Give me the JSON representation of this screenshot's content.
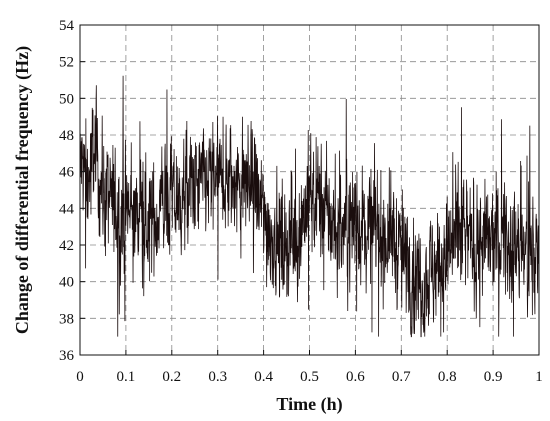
{
  "chart_data": {
    "type": "line",
    "title": "",
    "xlabel": "Time (h)",
    "ylabel": "Change of differential frequency (Hz)",
    "xlim": [
      0,
      1
    ],
    "ylim": [
      36,
      54
    ],
    "xticks": [
      0,
      0.1,
      0.2,
      0.3,
      0.4,
      0.5,
      0.6,
      0.7,
      0.8,
      0.9,
      1
    ],
    "xtick_labels": [
      "0",
      "0.1",
      "0.2",
      "0.3",
      "0.4",
      "0.5",
      "0.6",
      "0.7",
      "0.8",
      "0.9",
      "1"
    ],
    "yticks": [
      36,
      38,
      40,
      42,
      44,
      46,
      48,
      50,
      52,
      54
    ],
    "ytick_labels": [
      "36",
      "38",
      "40",
      "42",
      "44",
      "46",
      "48",
      "50",
      "52",
      "54"
    ],
    "grid": true,
    "grid_style": "dashed",
    "legend": "none",
    "line_color": "#1a0d0d",
    "series": [
      {
        "x": [
          0,
          0.01,
          0.02,
          0.03,
          0.04,
          0.05,
          0.06,
          0.08,
          0.1,
          0.12,
          0.14,
          0.16,
          0.18,
          0.2,
          0.22,
          0.24,
          0.26,
          0.28,
          0.3,
          0.32,
          0.34,
          0.36,
          0.38,
          0.4,
          0.42,
          0.44,
          0.46,
          0.48,
          0.5,
          0.52,
          0.54,
          0.56,
          0.58,
          0.6,
          0.62,
          0.64,
          0.66,
          0.68,
          0.7,
          0.72,
          0.74,
          0.76,
          0.78,
          0.8,
          0.82,
          0.84,
          0.86,
          0.88,
          0.9,
          0.92,
          0.94,
          0.96,
          0.98,
          1.0
        ],
        "values": [
          46.5,
          46.0,
          45.5,
          47.5,
          46.0,
          45.0,
          44.5,
          44.0,
          43.8,
          43.5,
          43.5,
          43.2,
          44.5,
          44.3,
          44.5,
          45.0,
          45.2,
          45.5,
          45.5,
          45.5,
          45.0,
          45.5,
          45.0,
          43.5,
          42.5,
          42.0,
          42.3,
          43.0,
          44.8,
          44.5,
          43.5,
          42.8,
          43.0,
          43.5,
          42.8,
          43.2,
          42.5,
          42.5,
          41.5,
          40.5,
          40.0,
          40.5,
          41.0,
          41.5,
          42.0,
          42.5,
          42.0,
          42.0,
          42.0,
          42.5,
          42.0,
          41.5,
          41.5,
          41.5
        ],
        "noise": 2.2,
        "spike_max": 52.2,
        "spike_min": 37.0
      }
    ]
  }
}
